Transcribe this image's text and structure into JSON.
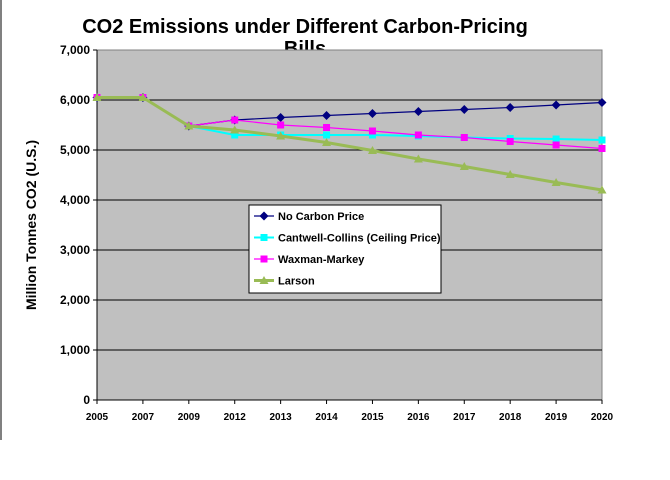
{
  "chart_data": {
    "type": "line",
    "title_line1": "CO2 Emissions under Different Carbon-Pricing",
    "title_line2": "Bills",
    "ylabel": "Million Tonnes CO2 (U.S.)",
    "xlabel": "",
    "categories": [
      "2005",
      "2007",
      "2009",
      "2012",
      "2013",
      "2014",
      "2015",
      "2016",
      "2017",
      "2018",
      "2019",
      "2020"
    ],
    "ylim": [
      0,
      7000
    ],
    "yticks": [
      0,
      1000,
      2000,
      3000,
      4000,
      5000,
      6000,
      7000
    ],
    "ytick_labels": [
      "0",
      "1,000",
      "2,000",
      "3,000",
      "4,000",
      "5,000",
      "6,000",
      "7,000"
    ],
    "grid": true,
    "legend_position": "center-left",
    "plot_background": "#c0c0c0",
    "series": [
      {
        "name": "No Carbon Price",
        "color": "#000080",
        "marker": "diamond",
        "values": [
          6050,
          6050,
          5480,
          5600,
          5650,
          5690,
          5730,
          5770,
          5810,
          5850,
          5900,
          5950
        ]
      },
      {
        "name": "Cantwell-Collins (Ceiling Price)",
        "color": "#00ffff",
        "marker": "square",
        "values": [
          6050,
          6050,
          5480,
          5300,
          5300,
          5300,
          5300,
          5280,
          5250,
          5230,
          5220,
          5200
        ]
      },
      {
        "name": "Waxman-Markey",
        "color": "#ff00ff",
        "marker": "square",
        "values": [
          6050,
          6050,
          5480,
          5600,
          5500,
          5450,
          5380,
          5300,
          5250,
          5170,
          5100,
          5030
        ]
      },
      {
        "name": "Larson",
        "color": "#99bb55",
        "marker": "triangle",
        "values": [
          6050,
          6050,
          5480,
          5400,
          5280,
          5150,
          4990,
          4820,
          4670,
          4510,
          4350,
          4200
        ]
      }
    ]
  }
}
